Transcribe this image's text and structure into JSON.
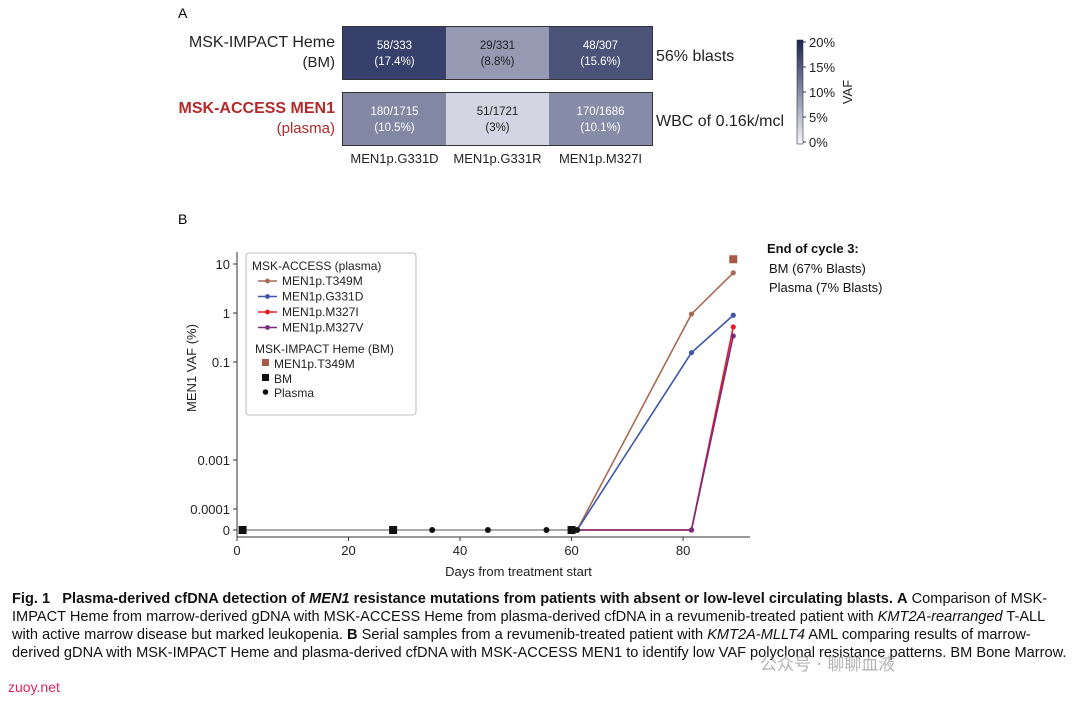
{
  "panel_a_letter": "A",
  "panel_b_letter": "B",
  "chart_data": [
    {
      "type": "heatmap",
      "rows": [
        {
          "label_main": "MSK-IMPACT Heme",
          "label_sub": "(BM)",
          "label_color": "#222222",
          "right_note": "56% blasts",
          "cells": [
            {
              "count": "58/333",
              "pct": "(17.4%)",
              "vaf": 17.4
            },
            {
              "count": "29/331",
              "pct": "(8.8%)",
              "vaf": 8.8
            },
            {
              "count": "48/307",
              "pct": "(15.6%)",
              "vaf": 15.6
            }
          ]
        },
        {
          "label_main": "MSK-ACCESS MEN1",
          "label_sub": "(plasma)",
          "label_color": "#b22a2a",
          "right_note": "WBC of 0.16k/mcl",
          "cells": [
            {
              "count": "180/1715",
              "pct": "(10.5%)",
              "vaf": 10.5
            },
            {
              "count": "51/1721",
              "pct": "(3%)",
              "vaf": 3
            },
            {
              "count": "170/1686",
              "pct": "(10.1%)",
              "vaf": 10.1
            }
          ]
        }
      ],
      "columns": [
        "MEN1p.G331D",
        "MEN1p.G331R",
        "MEN1p.M327I"
      ],
      "colorbar": {
        "label": "VAF",
        "ticks": [
          "20%",
          "15%",
          "10%",
          "5%",
          "0%"
        ],
        "range": [
          0,
          20
        ],
        "colors": [
          "#f4f5fb",
          "#1b2554"
        ]
      }
    },
    {
      "type": "line",
      "xlabel": "Days from treatment start",
      "ylabel": "MEN1 VAF (%)",
      "xticks": [
        0,
        20,
        40,
        60,
        80
      ],
      "xlim": [
        0,
        92
      ],
      "yticks": [
        {
          "v": 0,
          "label": "0"
        },
        {
          "v": 0.0001,
          "label": "0.0001"
        },
        {
          "v": 0.001,
          "label": "0.001"
        },
        {
          "v": 0.1,
          "label": "0.1"
        },
        {
          "v": 1,
          "label": "1"
        },
        {
          "v": 10,
          "label": "10"
        }
      ],
      "yscale": "log with zero break",
      "legend": {
        "group1_title": "MSK-ACCESS (plasma)",
        "group2_title": "MSK-IMPACT Heme (BM)",
        "items2": [
          "MEN1p.T349M",
          "BM",
          "Plasma"
        ]
      },
      "series": [
        {
          "name": "MEN1p.T349M",
          "color": "#a86a55",
          "x": [
            61,
            81.5,
            89
          ],
          "y": [
            0,
            0.95,
            6.6
          ]
        },
        {
          "name": "MEN1p.G331D",
          "color": "#3d56a6",
          "x": [
            61,
            81.5,
            89
          ],
          "y": [
            0,
            0.155,
            0.9
          ]
        },
        {
          "name": "MEN1p.M327I",
          "color": "#e01b24",
          "x": [
            61,
            81.5,
            89
          ],
          "y": [
            0,
            0,
            0.52
          ]
        },
        {
          "name": "MEN1p.M327V",
          "color": "#7b2a80",
          "x": [
            61,
            81.5,
            89
          ],
          "y": [
            0,
            0,
            0.34
          ]
        }
      ],
      "impact_points": [
        {
          "x": 89,
          "y": 12.5,
          "color": "#a85a4a"
        }
      ],
      "bm_samples": [
        1,
        28,
        60
      ],
      "plasma_samples": [
        35,
        45,
        55.5,
        61
      ],
      "annotation": {
        "title": "End of cycle 3:",
        "lines": [
          "BM (67% Blasts)",
          "Plasma (7% Blasts)"
        ]
      }
    }
  ],
  "caption": {
    "figlabel": "Fig. 1",
    "title_pre": "Plasma-derived cfDNA detection of ",
    "title_gene": "MEN1",
    "title_post": " resistance mutations from patients with absent or low-level circulating blasts.",
    "a_letter": "A",
    "a_text1": " Comparison of MSK-IMPACT Heme from marrow-derived gDNA with MSK-ACCESS Heme from plasma-derived cfDNA in a revumenib-treated patient with ",
    "a_gene": "KMT2A-rearranged",
    "a_text2": " T-ALL with active marrow disease but marked leukopenia.",
    "b_letter": "B",
    "b_text1": " Serial samples from a revumenib-treated patient with ",
    "b_gene": "KMT2A-MLLT4",
    "b_text2": " AML comparing results of marrow-derived gDNA with MSK-IMPACT Heme and plasma-derived cfDNA with MSK-ACCESS MEN1 to identify low VAF polyclonal resistance patterns. BM Bone Marrow."
  },
  "watermark": {
    "logo_text": "公众号 · 聊聊血液",
    "site": "zuoy.net"
  }
}
